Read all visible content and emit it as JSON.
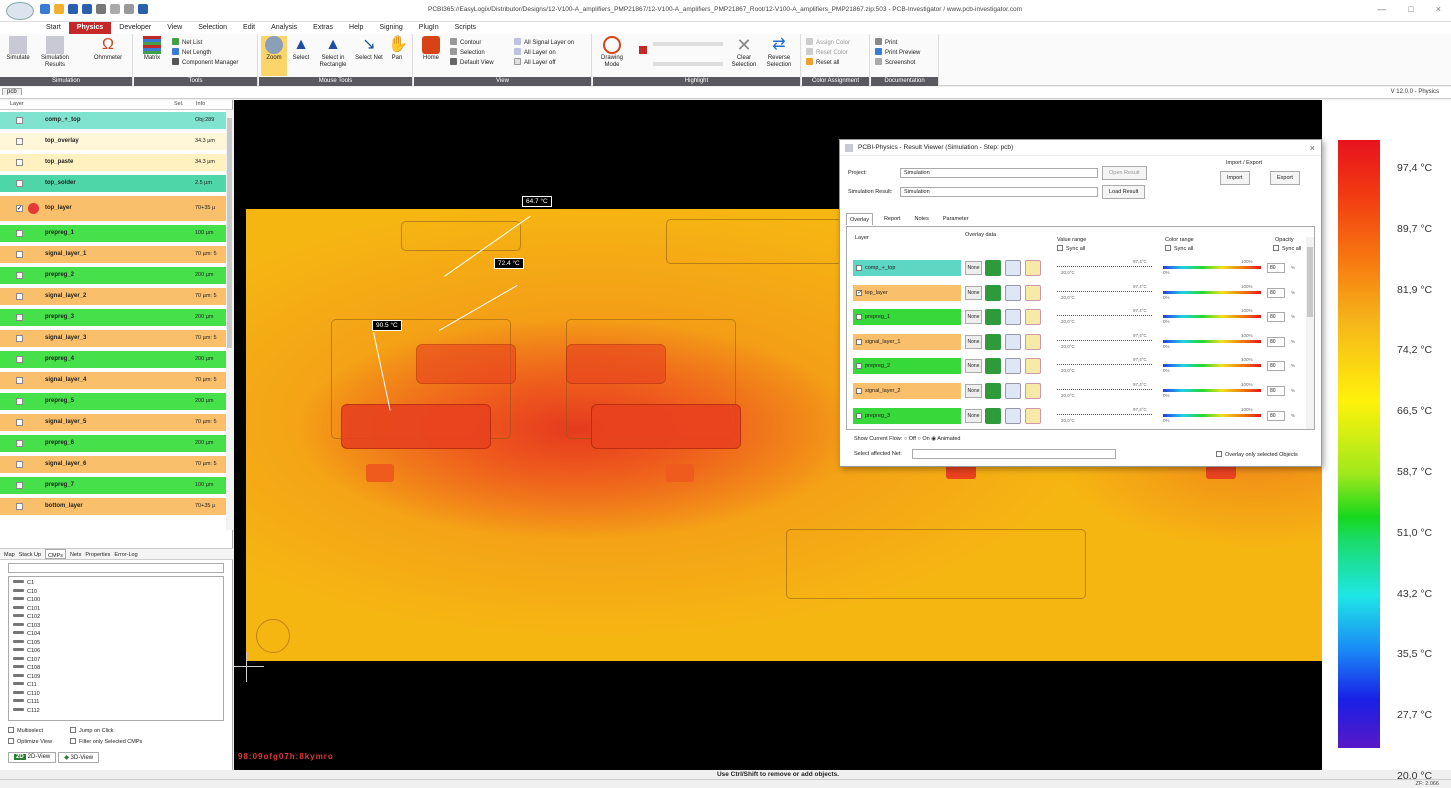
{
  "window": {
    "title": "PCBI365://EasyLogix/Distributor/Designs/12-V100-A_amplifiers_PMP21867/12-V100-A_amplifiers_PMP21867_Root/12-V100-A_amplifiers_PMP21867.zip:503 - PCB-Investigator / www.pcb-investigator.com",
    "min": "—",
    "max": "□",
    "close": "×"
  },
  "menu": [
    "Start",
    "Physics",
    "Developer",
    "View",
    "Selection",
    "Edit",
    "Analysis",
    "Extras",
    "Help",
    "Signing",
    "PlugIn",
    "Scripts"
  ],
  "ribbon": {
    "simulation": {
      "caption": "Simulation",
      "simulate": "Simulate",
      "simresults": "Simulation Results",
      "ohmmeter": "Ohmmeter"
    },
    "tools": {
      "caption": "Tools",
      "matrix": "Matrix",
      "netlist": "Net List",
      "netlength": "Net Length",
      "compmgr": "Component Manager"
    },
    "mouse": {
      "caption": "Mouse Tools",
      "zoom": "Zoom",
      "select": "Select",
      "selectrect": "Select in Rectangle",
      "selectnet": "Select Net",
      "pan": "Pan"
    },
    "view": {
      "caption": "View",
      "home": "Home",
      "contour": "Contour",
      "selection": "Selection",
      "defaultview": "Default View",
      "allsignal": "All Signal Layer on",
      "alllayeron": "All Layer on",
      "alllayeroff": "All Layer off"
    },
    "highlight": {
      "caption": "Highlight",
      "drawingmode": "Drawing Mode",
      "clearsel": "Clear Selection",
      "reversesel": "Reverse Selection"
    },
    "color": {
      "caption": "Color Assignment",
      "assign": "Assign Color",
      "reset": "Reset Color",
      "resetall": "Reset all"
    },
    "doc": {
      "caption": "Documentation",
      "print": "Print",
      "preview": "Print Preview",
      "screenshot": "Screenshot"
    }
  },
  "tab": "pcb",
  "version": "V 12.0.0 - Physics",
  "layerpanel": {
    "hdr_layer": "Layer",
    "hdr_sel": "Sel.",
    "hdr_info": "Info",
    "layers": [
      {
        "name": "comp_+_top",
        "info": "Obj:289",
        "color": "#7fe3d0"
      },
      {
        "name": "top_overlay",
        "info": "34.3 µm",
        "color": "#fff7d8"
      },
      {
        "name": "top_paste",
        "info": "34.3 µm",
        "color": "#fff1c0"
      },
      {
        "name": "top_solder",
        "info": "2.5 µm",
        "color": "#4fd6a8"
      },
      {
        "name": "top_layer",
        "info": "70+35 µ",
        "color": "#f9bf6a"
      },
      {
        "name": "prepreg_1",
        "info": "100 µm",
        "color": "#45e04a"
      },
      {
        "name": "signal_layer_1",
        "info": "70 µm: 5",
        "color": "#f9bf6a"
      },
      {
        "name": "prepreg_2",
        "info": "200 µm",
        "color": "#45e04a"
      },
      {
        "name": "signal_layer_2",
        "info": "70 µm: 5",
        "color": "#f9bf6a"
      },
      {
        "name": "prepreg_3",
        "info": "200 µm",
        "color": "#45e04a"
      },
      {
        "name": "signal_layer_3",
        "info": "70 µm: 5",
        "color": "#f9bf6a"
      },
      {
        "name": "prepreg_4",
        "info": "200 µm",
        "color": "#45e04a"
      },
      {
        "name": "signal_layer_4",
        "info": "70 µm: 5",
        "color": "#f9bf6a"
      },
      {
        "name": "prepreg_5",
        "info": "200 µm",
        "color": "#45e04a"
      },
      {
        "name": "signal_layer_5",
        "info": "70 µm: 5",
        "color": "#f9bf6a"
      },
      {
        "name": "prepreg_6",
        "info": "200 µm",
        "color": "#45e04a"
      },
      {
        "name": "signal_layer_6",
        "info": "70 µm: 5",
        "color": "#f9bf6a"
      },
      {
        "name": "prepreg_7",
        "info": "100 µm",
        "color": "#45e04a"
      },
      {
        "name": "bottom_layer",
        "info": "70+35 µ",
        "color": "#f9bf6a"
      }
    ]
  },
  "bottomtabs": [
    "Map",
    "Stack Up",
    "CMPs",
    "Nets",
    "Properties",
    "Error-Log"
  ],
  "cmps": [
    "C1",
    "C10",
    "C100",
    "C101",
    "C102",
    "C103",
    "C104",
    "C105",
    "C106",
    "C107",
    "C108",
    "C109",
    "C11",
    "C110",
    "C111",
    "C112"
  ],
  "opts": {
    "multiselect": "Multiselect",
    "jump": "Jump on Click",
    "optimize": "Optimize View",
    "filter": "Filter only Selected CMPs"
  },
  "viewtabs": {
    "v2d": "2D-View",
    "v3d": "3D-View"
  },
  "temps": {
    "t1": "64.7 °C",
    "t2": "72.4 °C",
    "t3": "90.5 °C"
  },
  "canvas_text": "98:09ofg07h:8kymro",
  "status": "Use Ctrl/Shift to remove or add objects.",
  "zoomfactor": "ZF: 2.066",
  "legend": [
    "97,4 °C",
    "89,7 °C",
    "81,9 °C",
    "74,2 °C",
    "66,5 °C",
    "58,7 °C",
    "51,0 °C",
    "43,2 °C",
    "35,5 °C",
    "27,7 °C",
    "20,0 °C"
  ],
  "dialog": {
    "title": "PCBI-Physics - Result Viewer (Simulation - Step: pcb)",
    "project_lbl": "Project:",
    "project_val": "Simulation",
    "open": "Open Result",
    "simres_lbl": "Simulation Result:",
    "simres_val": "Simulation",
    "load": "Load Result",
    "impexp": "Import / Export",
    "import": "Import",
    "export": "Export",
    "tabs": [
      "Overlay",
      "Report",
      "Notes",
      "Parameter"
    ],
    "h_layer": "Layer",
    "h_overlay": "Overlay data",
    "h_value": "Value range",
    "h_color": "Color range",
    "h_opacity": "Opacity",
    "sync": "Sync all",
    "none": "None",
    "vmax": "97,4°C",
    "vmin": "20,0°C",
    "cmax": "100%",
    "cmin": "0%",
    "opacity": "80",
    "pct": "%",
    "rows": [
      {
        "name": "comp_+_top",
        "color": "#5ed6c4",
        "checked": false
      },
      {
        "name": "top_layer",
        "color": "#f9bf6a",
        "checked": true
      },
      {
        "name": "prepreg_1",
        "color": "#36d83a",
        "checked": false
      },
      {
        "name": "signal_layer_1",
        "color": "#f9bf6a",
        "checked": false
      },
      {
        "name": "prepreg_2",
        "color": "#36d83a",
        "checked": false
      },
      {
        "name": "signal_layer_2",
        "color": "#f9bf6a",
        "checked": false
      },
      {
        "name": "prepreg_3",
        "color": "#36d83a",
        "checked": false
      }
    ],
    "flow_lbl": "Show Current Flow:",
    "off": "Off",
    "on": "On",
    "animated": "Animated",
    "net_lbl": "Select affected Net:",
    "only_sel": "Overlay only selected Objects"
  }
}
